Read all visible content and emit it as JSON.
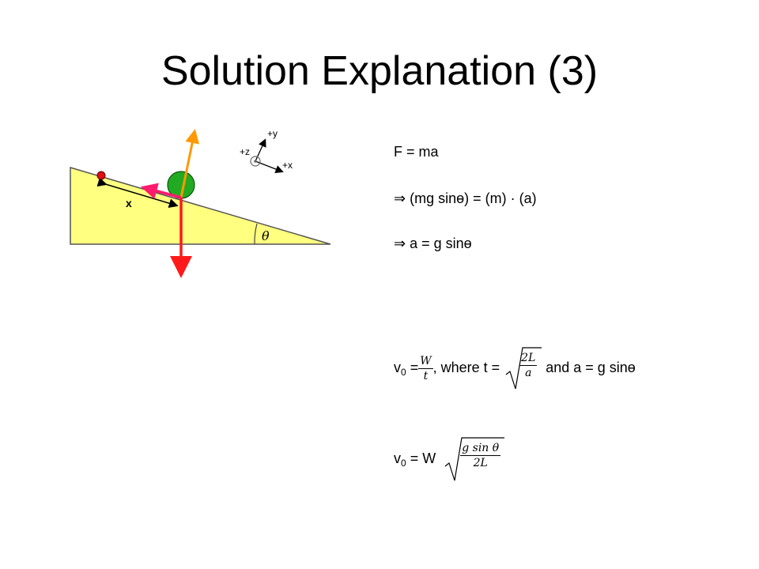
{
  "slide": {
    "title": "Solution Explanation (3)"
  },
  "diagram": {
    "axis_labels": {
      "y": "+y",
      "z": "+z",
      "x": "+x"
    },
    "distance_label": "x",
    "angle_label": "θ",
    "colors": {
      "ramp_fill": "#ffff80",
      "ball": "#22aa22",
      "weight_arrow": "#ff1a1a",
      "normal_arrow": "#ff9900",
      "friction_arrow": "#ff1a6e",
      "start_marker": "#dd1111"
    }
  },
  "equations": {
    "line1": "F = ma",
    "line2_prefix": "⇒",
    "line2": "(mg sinɵ) = (m) · (a)",
    "line3_prefix": "⇒",
    "line3": "a = g sinɵ",
    "v0_eq1": {
      "lhs_v": "v",
      "lhs_sub": "0",
      "eq": "=",
      "frac_num": "W",
      "frac_den": "t",
      "mid_text": ", where t =",
      "sqrt_num": "2L",
      "sqrt_den": "a",
      "tail_text": "and a = g sinɵ"
    },
    "v0_eq2": {
      "lhs_v": "v",
      "lhs_sub": "0",
      "eq": "= W",
      "sqrt_num": "g sin θ",
      "sqrt_den": "2L"
    }
  }
}
